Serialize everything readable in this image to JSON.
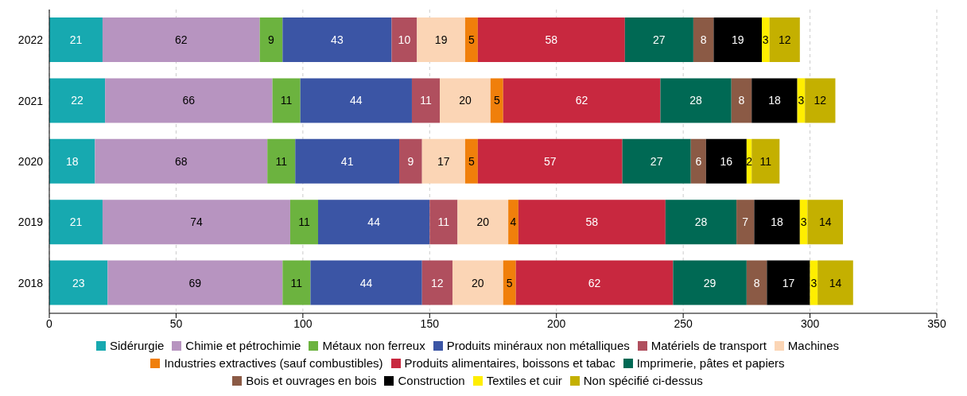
{
  "chart_data": {
    "type": "bar",
    "orientation": "horizontal",
    "stacked": true,
    "categories": [
      "2022",
      "2021",
      "2020",
      "2019",
      "2018"
    ],
    "series": [
      {
        "name": "Sidérurgie",
        "color": "#17a9b0",
        "values": [
          21,
          22,
          18,
          21,
          23
        ]
      },
      {
        "name": "Chimie et pétrochimie",
        "color": "#b794c0",
        "values": [
          62,
          66,
          68,
          74,
          69
        ]
      },
      {
        "name": "Métaux non ferreux",
        "color": "#6cb33f",
        "values": [
          9,
          11,
          11,
          11,
          11
        ]
      },
      {
        "name": "Produits minéraux non métalliques",
        "color": "#3b55a5",
        "values": [
          43,
          44,
          41,
          44,
          44
        ]
      },
      {
        "name": "Matériels de transport",
        "color": "#b04f5e",
        "values": [
          10,
          11,
          9,
          11,
          12
        ]
      },
      {
        "name": "Machines",
        "color": "#fbd5b5",
        "values": [
          19,
          20,
          17,
          20,
          20
        ]
      },
      {
        "name": "Industries extractives (sauf combustibles)",
        "color": "#f07f0b",
        "values": [
          5,
          5,
          5,
          4,
          5
        ]
      },
      {
        "name": "Produits alimentaires, boissons et tabac",
        "color": "#c8283f",
        "values": [
          58,
          62,
          57,
          58,
          62
        ]
      },
      {
        "name": "Imprimerie, pâtes et papiers",
        "color": "#006954",
        "values": [
          27,
          28,
          27,
          28,
          29
        ]
      },
      {
        "name": "Bois et ouvrages en bois",
        "color": "#8b5a45",
        "values": [
          8,
          8,
          6,
          7,
          8
        ]
      },
      {
        "name": "Construction",
        "color": "#000000",
        "values": [
          19,
          18,
          16,
          18,
          17
        ]
      },
      {
        "name": "Textiles et cuir",
        "color": "#ffee00",
        "values": [
          3,
          3,
          2,
          3,
          3
        ]
      },
      {
        "name": "Non spécifié ci-dessus",
        "color": "#c4b000",
        "values": [
          12,
          12,
          11,
          14,
          14
        ]
      }
    ],
    "xlim": [
      0,
      350
    ],
    "xticks": [
      0,
      50,
      100,
      150,
      200,
      250,
      300,
      350
    ],
    "grid": "x",
    "legend": "bottom",
    "data_labels": true
  }
}
